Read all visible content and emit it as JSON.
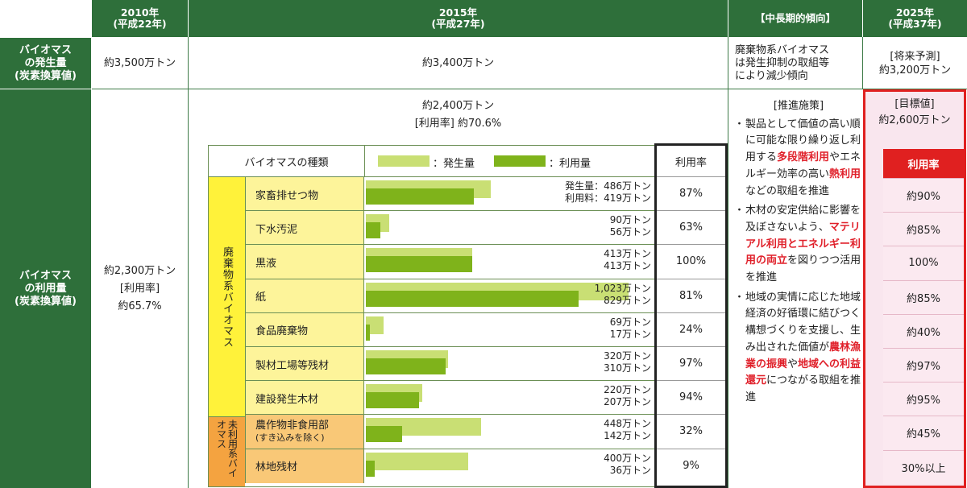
{
  "header": {
    "y2010": "2010年",
    "y2010_sub": "(平成22年)",
    "y2015": "2015年",
    "y2015_sub": "(平成27年)",
    "trend": "【中長期的傾向】",
    "y2025": "2025年",
    "y2025_sub": "(平成37年)"
  },
  "row_generation": {
    "label_lines": [
      "バイオマス",
      "の発生量",
      "(炭素換算値)"
    ],
    "v2010": "約3,500万トン",
    "v2015": "約3,400万トン",
    "trend_lines": [
      "廃棄物系バイオマス",
      "は発生抑制の取組等",
      "により減少傾向"
    ],
    "v2025_lines": [
      "[将来予測]",
      "約3,200万トン"
    ]
  },
  "row_usage": {
    "label_lines": [
      "バイオマス",
      "の利用量",
      "(炭素換算値)"
    ],
    "v2010_lines": [
      "約2,300万トン",
      "[利用率]",
      "約65.7%"
    ],
    "v2015_lines": [
      "約2,400万トン",
      "[利用率] 約70.6%"
    ],
    "target_lines": [
      "[目標値]",
      "約2,600万トン"
    ]
  },
  "inner_table": {
    "col_type": "バイオマスの種類",
    "legend_gen": "：発生量",
    "legend_use": "：利用量",
    "col_rate": "利用率",
    "target_rate_header": "利用率",
    "group_waste": "廃棄物系バイオマス",
    "group_unused": "未利用系バイオマス",
    "rows": [
      {
        "name": "家畜排せつ物",
        "gen": "発生量：486万トン",
        "use": "利用料：419万トン",
        "gen_val": 486,
        "use_val": 419,
        "rate": "87%",
        "target": "約90%",
        "group": "waste"
      },
      {
        "name": "下水汚泥",
        "gen": "90万トン",
        "use": "56万トン",
        "gen_val": 90,
        "use_val": 56,
        "rate": "63%",
        "target": "約85%",
        "group": "waste"
      },
      {
        "name": "黒液",
        "gen": "413万トン",
        "use": "413万トン",
        "gen_val": 413,
        "use_val": 413,
        "rate": "100%",
        "target": "100%",
        "group": "waste"
      },
      {
        "name": "紙",
        "gen": "1,023万トン",
        "use": "829万トン",
        "gen_val": 1023,
        "use_val": 829,
        "rate": "81%",
        "target": "約85%",
        "group": "waste"
      },
      {
        "name": "食品廃棄物",
        "gen": "69万トン",
        "use": "17万トン",
        "gen_val": 69,
        "use_val": 17,
        "rate": "24%",
        "target": "約40%",
        "group": "waste"
      },
      {
        "name": "製材工場等残材",
        "gen": "320万トン",
        "use": "310万トン",
        "gen_val": 320,
        "use_val": 310,
        "rate": "97%",
        "target": "約97%",
        "group": "waste"
      },
      {
        "name": "建設発生木材",
        "gen": "220万トン",
        "use": "207万トン",
        "gen_val": 220,
        "use_val": 207,
        "rate": "94%",
        "target": "約95%",
        "group": "waste"
      },
      {
        "name": "農作物非食用部",
        "name_sub": "(すき込みを除く)",
        "gen": "448万トン",
        "use": "142万トン",
        "gen_val": 448,
        "use_val": 142,
        "rate": "32%",
        "target": "約45%",
        "group": "unused"
      },
      {
        "name": "林地残材",
        "gen": "400万トン",
        "use": "36万トン",
        "gen_val": 400,
        "use_val": 36,
        "rate": "9%",
        "target": "30%以上",
        "group": "unused"
      }
    ]
  },
  "measures": {
    "heading": "[推進施策]",
    "items": [
      [
        {
          "t": "製品として価値の高い順に可能な限り繰り返し利用する"
        },
        {
          "t": "多段階利用",
          "red": true
        },
        {
          "t": "やエネルギー効率の高い"
        },
        {
          "t": "熱利用",
          "red": true
        },
        {
          "t": "などの取組を推進"
        }
      ],
      [
        {
          "t": "木材の安定供給に影響を及ぼさないよう、"
        },
        {
          "t": "マテリアル利用とエネルギー利用の両立",
          "red": true
        },
        {
          "t": "を図りつつ活用を推進"
        }
      ],
      [
        {
          "t": "地域の実情に応じた地域経済の好循環に結びつく構想づくりを支援し、生み出された価値が"
        },
        {
          "t": "農林漁業の振興",
          "red": true
        },
        {
          "t": "や"
        },
        {
          "t": "地域への利益還元",
          "red": true
        },
        {
          "t": "につながる取組を推進"
        }
      ]
    ]
  },
  "colors": {
    "header_green": "#2e6f3a",
    "gen_bar": "#c9df74",
    "use_bar": "#7fb31b",
    "waste_group": "#fff23a",
    "waste_name": "#fdf49a",
    "unused_group": "#f4a340",
    "unused_name": "#f9c877",
    "target_red": "#e02020"
  }
}
